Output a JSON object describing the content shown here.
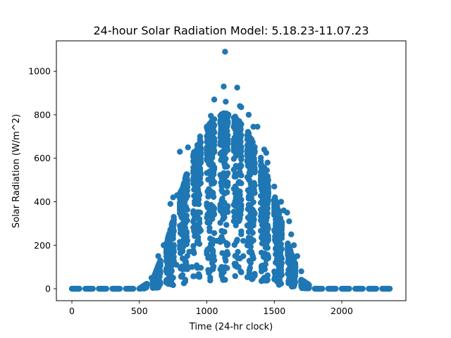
{
  "chart_data": {
    "type": "scatter",
    "title": "24-hour Solar Radiation Model: 5.18.23-11.07.23",
    "xlabel": "Time (24-hr clock)",
    "ylabel": "Solar Radiation (W/m^2)",
    "xlim": [
      -115,
      2475
    ],
    "ylim": [
      -55,
      1140
    ],
    "xticks": [
      0,
      500,
      1000,
      1500,
      2000
    ],
    "yticks": [
      0,
      200,
      400,
      600,
      800,
      1000
    ],
    "grid": false,
    "legend": "none",
    "marker_color": "#1f77b4",
    "x_sampling": {
      "start": 0,
      "end": 2355,
      "hour_step": 100,
      "minute_step": 5
    },
    "daytime_profile": [
      {
        "x": 500,
        "y": 0
      },
      {
        "x": 600,
        "y": 40
      },
      {
        "x": 700,
        "y": 200
      },
      {
        "x": 800,
        "y": 420
      },
      {
        "x": 900,
        "y": 600
      },
      {
        "x": 1000,
        "y": 720
      },
      {
        "x": 1100,
        "y": 780
      },
      {
        "x": 1200,
        "y": 770
      },
      {
        "x": 1300,
        "y": 700
      },
      {
        "x": 1400,
        "y": 580
      },
      {
        "x": 1500,
        "y": 420
      },
      {
        "x": 1600,
        "y": 200
      },
      {
        "x": 1700,
        "y": 40
      },
      {
        "x": 1800,
        "y": 0
      }
    ],
    "outliers": [
      {
        "x": 1135,
        "y": 1090
      },
      {
        "x": 1125,
        "y": 930
      },
      {
        "x": 1225,
        "y": 925
      },
      {
        "x": 1140,
        "y": 860
      },
      {
        "x": 1055,
        "y": 870
      },
      {
        "x": 1245,
        "y": 840
      },
      {
        "x": 1255,
        "y": 835
      },
      {
        "x": 1310,
        "y": 800
      },
      {
        "x": 1345,
        "y": 745
      },
      {
        "x": 1375,
        "y": 745
      },
      {
        "x": 1425,
        "y": 640
      },
      {
        "x": 1440,
        "y": 625
      },
      {
        "x": 1450,
        "y": 580
      },
      {
        "x": 1445,
        "y": 545
      },
      {
        "x": 1500,
        "y": 470
      },
      {
        "x": 1550,
        "y": 400
      },
      {
        "x": 1570,
        "y": 360
      },
      {
        "x": 1595,
        "y": 350
      },
      {
        "x": 1610,
        "y": 310
      },
      {
        "x": 1625,
        "y": 250
      },
      {
        "x": 1645,
        "y": 200
      },
      {
        "x": 1670,
        "y": 150
      },
      {
        "x": 1700,
        "y": 80
      },
      {
        "x": 1720,
        "y": 30
      },
      {
        "x": 800,
        "y": 630
      },
      {
        "x": 780,
        "y": 430
      },
      {
        "x": 750,
        "y": 420
      },
      {
        "x": 730,
        "y": 390
      },
      {
        "x": 680,
        "y": 200
      },
      {
        "x": 640,
        "y": 150
      },
      {
        "x": 590,
        "y": 50
      },
      {
        "x": 560,
        "y": 20
      },
      {
        "x": 860,
        "y": 650
      },
      {
        "x": 950,
        "y": 700
      },
      {
        "x": 1030,
        "y": 795
      },
      {
        "x": 1160,
        "y": 800
      },
      {
        "x": 1050,
        "y": 150
      },
      {
        "x": 1000,
        "y": 160
      },
      {
        "x": 1040,
        "y": 180
      },
      {
        "x": 1110,
        "y": 100
      },
      {
        "x": 1120,
        "y": 80
      },
      {
        "x": 1150,
        "y": 95
      },
      {
        "x": 1230,
        "y": 140
      },
      {
        "x": 1225,
        "y": 100
      },
      {
        "x": 1270,
        "y": 150
      },
      {
        "x": 1330,
        "y": 170
      },
      {
        "x": 1340,
        "y": 150
      },
      {
        "x": 1270,
        "y": 220
      },
      {
        "x": 1145,
        "y": 210
      },
      {
        "x": 910,
        "y": 260
      },
      {
        "x": 870,
        "y": 170
      },
      {
        "x": 890,
        "y": 100
      },
      {
        "x": 855,
        "y": 90
      },
      {
        "x": 775,
        "y": 110
      },
      {
        "x": 1005,
        "y": 180
      },
      {
        "x": 1075,
        "y": 220
      }
    ]
  }
}
